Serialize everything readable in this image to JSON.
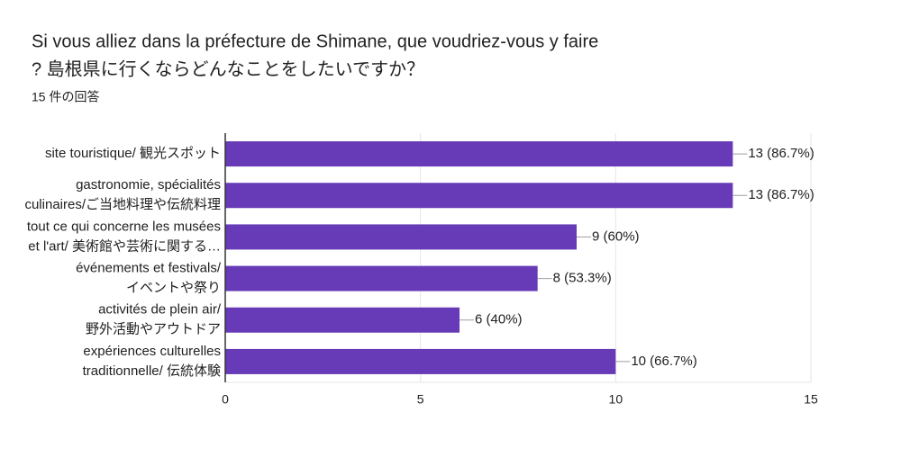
{
  "chart_data": {
    "type": "bar",
    "orientation": "horizontal",
    "title": [
      "Si vous alliez dans la préfecture de Shimane, que voudriez-vous y faire",
      "? 島根県に行くならどんなことをしたいですか？"
    ],
    "subtitle": "15 件の回答",
    "categories": [
      [
        "site touristique/ 観光スポット"
      ],
      [
        "gastronomie, spécialités",
        "culinaires/ご当地料理や伝統料理"
      ],
      [
        "tout ce qui concerne les musées",
        "et l'art/ 美術館や芸術に関する…"
      ],
      [
        "événements et festivals/",
        "イベントや祭り"
      ],
      [
        "activités de plein air/",
        "野外活動やアウトドア"
      ],
      [
        "expériences culturelles",
        "traditionnelle/ 伝統体験"
      ]
    ],
    "values": [
      13,
      13,
      9,
      8,
      6,
      10
    ],
    "value_labels": [
      "13 (86.7%)",
      "13 (86.7%)",
      "9 (60%)",
      "8 (53.3%)",
      "6 (40%)",
      "10 (66.7%)"
    ],
    "color": "#673ab7",
    "xlim": [
      0,
      15
    ],
    "xticks": [
      0,
      5,
      10,
      15
    ],
    "grid": true
  }
}
